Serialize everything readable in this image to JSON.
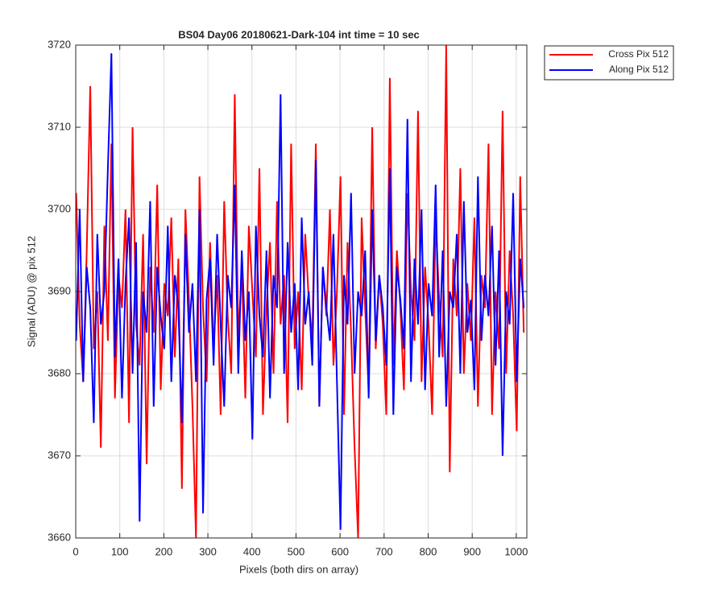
{
  "chart_data": {
    "type": "line",
    "title": "BS04 Day06 20180621-Dark-104 int time = 10 sec",
    "xlabel": "Pixels (both dirs on array)",
    "ylabel": "Signal (ADU) @ pix 512",
    "x": [
      1,
      9,
      17,
      25,
      33,
      41,
      49,
      57,
      65,
      73,
      81,
      89,
      97,
      105,
      113,
      121,
      129,
      137,
      145,
      153,
      161,
      169,
      177,
      185,
      193,
      201,
      209,
      217,
      225,
      233,
      241,
      249,
      257,
      265,
      273,
      281,
      289,
      297,
      305,
      313,
      321,
      329,
      337,
      345,
      353,
      361,
      369,
      377,
      385,
      393,
      401,
      409,
      417,
      425,
      433,
      441,
      449,
      457,
      465,
      473,
      481,
      489,
      497,
      505,
      513,
      521,
      529,
      537,
      545,
      553,
      561,
      569,
      577,
      585,
      593,
      601,
      609,
      617,
      625,
      633,
      641,
      649,
      657,
      665,
      673,
      681,
      689,
      697,
      705,
      713,
      721,
      729,
      737,
      745,
      753,
      761,
      769,
      777,
      785,
      793,
      801,
      809,
      817,
      825,
      833,
      841,
      849,
      857,
      865,
      873,
      881,
      889,
      897,
      905,
      913,
      921,
      929,
      937,
      945,
      953,
      961,
      969,
      977,
      985,
      993,
      1001,
      1009,
      1017
    ],
    "series": [
      {
        "name": "Cross Pix 512",
        "color": "#ff0000",
        "values": [
          3702,
          3686,
          3679,
          3695,
          3715,
          3683,
          3690,
          3671,
          3698,
          3684,
          3708,
          3677,
          3692,
          3688,
          3700,
          3674,
          3710,
          3686,
          3681,
          3697,
          3669,
          3693,
          3685,
          3703,
          3678,
          3691,
          3687,
          3699,
          3682,
          3694,
          3666,
          3700,
          3689,
          3676,
          3660,
          3704,
          3688,
          3679,
          3696,
          3683,
          3692,
          3675,
          3701,
          3687,
          3680,
          3714,
          3684,
          3693,
          3677,
          3698,
          3690,
          3682,
          3705,
          3675,
          3688,
          3696,
          3680,
          3701,
          3686,
          3692,
          3674,
          3708,
          3683,
          3690,
          3678,
          3697,
          3689,
          3684,
          3708,
          3676,
          3693,
          3687,
          3700,
          3681,
          3690,
          3704,
          3675,
          3696,
          3685,
          3671,
          3660,
          3699,
          3688,
          3678,
          3710,
          3683,
          3692,
          3686,
          3675,
          3716,
          3681,
          3695,
          3688,
          3678,
          3702,
          3690,
          3684,
          3712,
          3679,
          3693,
          3686,
          3675,
          3699,
          3689,
          3682,
          3720,
          3668,
          3694,
          3687,
          3705,
          3680,
          3691,
          3684,
          3699,
          3676,
          3692,
          3688,
          3708,
          3675,
          3690,
          3683,
          3712,
          3680,
          3695,
          3687,
          3673,
          3704,
          3685
        ]
      },
      {
        "name": "Along Pix 512",
        "color": "#0000ff",
        "values": [
          3684,
          3700,
          3679,
          3693,
          3688,
          3674,
          3697,
          3686,
          3690,
          3705,
          3719,
          3682,
          3694,
          3677,
          3691,
          3699,
          3680,
          3696,
          3662,
          3690,
          3685,
          3701,
          3676,
          3693,
          3687,
          3683,
          3698,
          3679,
          3692,
          3688,
          3674,
          3697,
          3685,
          3691,
          3679,
          3700,
          3663,
          3689,
          3694,
          3681,
          3697,
          3686,
          3676,
          3692,
          3688,
          3703,
          3680,
          3695,
          3684,
          3690,
          3672,
          3698,
          3687,
          3682,
          3695,
          3677,
          3692,
          3688,
          3714,
          3680,
          3696,
          3685,
          3691,
          3678,
          3699,
          3686,
          3690,
          3681,
          3706,
          3676,
          3693,
          3688,
          3684,
          3697,
          3679,
          3661,
          3692,
          3686,
          3702,
          3680,
          3690,
          3687,
          3695,
          3677,
          3700,
          3684,
          3692,
          3688,
          3681,
          3705,
          3675,
          3693,
          3689,
          3683,
          3711,
          3679,
          3694,
          3686,
          3700,
          3678,
          3691,
          3687,
          3703,
          3682,
          3695,
          3676,
          3690,
          3688,
          3697,
          3680,
          3701,
          3685,
          3689,
          3678,
          3704,
          3684,
          3692,
          3687,
          3698,
          3681,
          3695,
          3670,
          3690,
          3686,
          3702,
          3679,
          3694,
          3688
        ]
      }
    ],
    "xlim": [
      0,
      1024
    ],
    "xticks": [
      0,
      100,
      200,
      300,
      400,
      500,
      600,
      700,
      800,
      900,
      1000
    ],
    "ylim": [
      3660,
      3720
    ],
    "yticks": [
      3660,
      3670,
      3680,
      3690,
      3700,
      3710,
      3720
    ],
    "grid": true,
    "legend": "outside-northeast"
  }
}
